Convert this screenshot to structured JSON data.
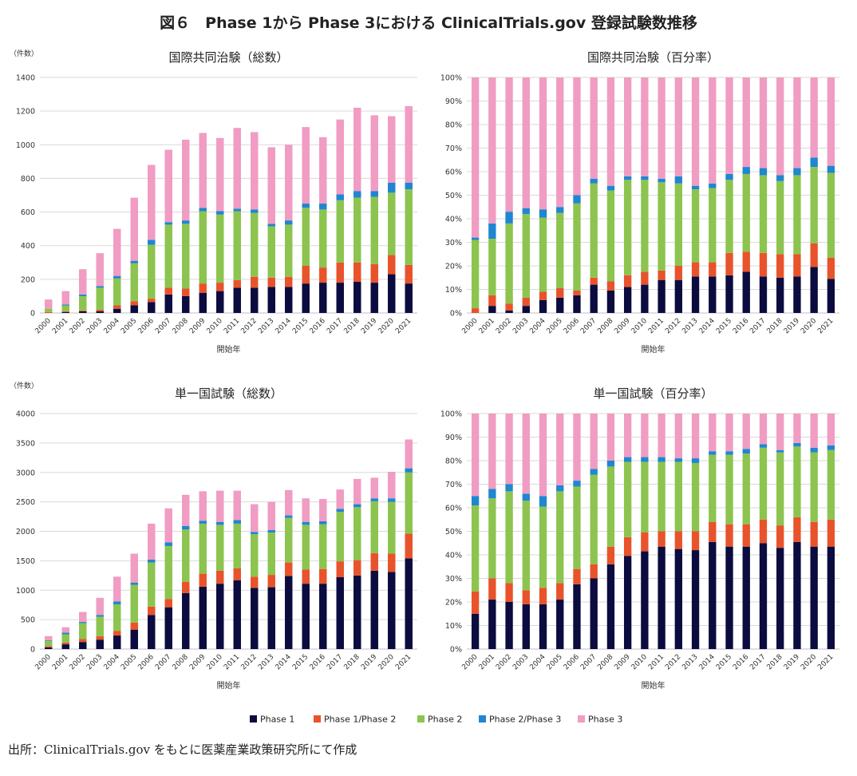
{
  "figure": {
    "title": "図６　Phase 1から Phase 3における ClinicalTrials.gov 登録試験数推移",
    "source": "出所：ClinicalTrials.gov をもとに医薬産業政策研究所にて作成"
  },
  "colors": {
    "Phase 1": "#0b0b3f",
    "Phase 1/Phase 2": "#e8532b",
    "Phase 2": "#8cc44f",
    "Phase 2/Phase 3": "#1f86d1",
    "Phase 3": "#f09cc3"
  },
  "legend": [
    "Phase 1",
    "Phase 1/Phase 2",
    "Phase 2",
    "Phase 2/Phase 3",
    "Phase 3"
  ],
  "chart_data": [
    {
      "type": "bar",
      "stacked": true,
      "title": "国際共同治験（総数）",
      "unit_label": "（件数）",
      "xlabel": "開始年",
      "ylabel": "",
      "ylim": [
        0,
        1400
      ],
      "yticks": [
        0,
        200,
        400,
        600,
        800,
        1000,
        1200,
        1400
      ],
      "percent": false,
      "categories": [
        "2000",
        "2001",
        "2002",
        "2003",
        "2004",
        "2005",
        "2006",
        "2007",
        "2008",
        "2009",
        "2010",
        "2011",
        "2012",
        "2013",
        "2014",
        "2015",
        "2016",
        "2017",
        "2018",
        "2019",
        "2020",
        "2021"
      ],
      "series": [
        {
          "name": "Phase 1",
          "values": [
            0,
            5,
            10,
            10,
            25,
            45,
            65,
            110,
            100,
            120,
            130,
            150,
            150,
            155,
            155,
            175,
            180,
            180,
            185,
            180,
            230,
            175
          ]
        },
        {
          "name": "Phase 1/Phase 2",
          "values": [
            5,
            5,
            5,
            10,
            20,
            25,
            20,
            40,
            45,
            55,
            50,
            45,
            65,
            55,
            60,
            105,
            90,
            120,
            115,
            110,
            115,
            110
          ]
        },
        {
          "name": "Phase 2",
          "values": [
            20,
            35,
            85,
            130,
            160,
            225,
            320,
            375,
            385,
            430,
            405,
            410,
            380,
            305,
            310,
            345,
            345,
            370,
            385,
            400,
            370,
            450
          ]
        },
        {
          "name": "Phase 2/Phase 3",
          "values": [
            0,
            5,
            10,
            10,
            15,
            15,
            30,
            15,
            20,
            20,
            20,
            15,
            20,
            15,
            25,
            25,
            35,
            35,
            40,
            35,
            60,
            40
          ]
        },
        {
          "name": "Phase 3",
          "values": [
            55,
            80,
            150,
            195,
            280,
            375,
            445,
            430,
            480,
            445,
            435,
            480,
            460,
            455,
            450,
            455,
            395,
            445,
            495,
            450,
            395,
            455
          ]
        }
      ]
    },
    {
      "type": "bar",
      "stacked": true,
      "title": "国際共同治験（百分率）",
      "unit_label": "",
      "xlabel": "開始年",
      "ylabel": "",
      "ylim": [
        0,
        100
      ],
      "yticks": [
        0,
        10,
        20,
        30,
        40,
        50,
        60,
        70,
        80,
        90,
        100
      ],
      "percent": true,
      "categories": [
        "2000",
        "2001",
        "2002",
        "2003",
        "2004",
        "2005",
        "2006",
        "2007",
        "2008",
        "2009",
        "2010",
        "2011",
        "2012",
        "2013",
        "2014",
        "2015",
        "2016",
        "2017",
        "2018",
        "2019",
        "2020",
        "2021"
      ],
      "series": [
        {
          "name": "Phase 1",
          "values": [
            0,
            3,
            1,
            3,
            5.5,
            6.5,
            7.5,
            12,
            9.5,
            11,
            12,
            14,
            14,
            15.5,
            15.5,
            16,
            17.5,
            15.5,
            15,
            15.5,
            19.5,
            14.5
          ]
        },
        {
          "name": "Phase 1/Phase 2",
          "values": [
            2,
            4.5,
            3,
            3.5,
            3.5,
            4,
            2,
            3,
            4,
            5,
            5.5,
            4,
            6,
            6,
            6,
            9.5,
            8.5,
            10,
            10,
            9.5,
            10,
            9
          ]
        },
        {
          "name": "Phase 2",
          "values": [
            29,
            24,
            34,
            35.5,
            31.5,
            32,
            37,
            40,
            38.5,
            40.5,
            39,
            37.5,
            35,
            31,
            31.5,
            31,
            33,
            33,
            31,
            33.5,
            32.5,
            36
          ]
        },
        {
          "name": "Phase 2/Phase 3",
          "values": [
            1,
            6.5,
            5,
            2.5,
            3.5,
            2.5,
            3.5,
            2,
            2,
            1.5,
            1.5,
            1.5,
            3,
            1.5,
            2,
            2.5,
            3,
            3,
            2.5,
            3,
            4,
            3
          ]
        },
        {
          "name": "Phase 3",
          "values": [
            68,
            62,
            57,
            55.5,
            56,
            55,
            50,
            43,
            46,
            42,
            42,
            43,
            42,
            46,
            45,
            41,
            38,
            38.5,
            41.5,
            38.5,
            34,
            37.5
          ]
        }
      ]
    },
    {
      "type": "bar",
      "stacked": true,
      "title": "単一国試験（総数）",
      "unit_label": "（件数）",
      "xlabel": "開始年",
      "ylabel": "",
      "ylim": [
        0,
        4000
      ],
      "yticks": [
        0,
        500,
        1000,
        1500,
        2000,
        2500,
        3000,
        3500,
        4000
      ],
      "percent": false,
      "categories": [
        "2000",
        "2001",
        "2002",
        "2003",
        "2004",
        "2005",
        "2006",
        "2007",
        "2008",
        "2009",
        "2010",
        "2011",
        "2012",
        "2013",
        "2014",
        "2015",
        "2016",
        "2017",
        "2018",
        "2019",
        "2020",
        "2021"
      ],
      "series": [
        {
          "name": "Phase 1",
          "values": [
            30,
            80,
            120,
            160,
            230,
            330,
            580,
            710,
            950,
            1060,
            1110,
            1170,
            1040,
            1050,
            1240,
            1110,
            1110,
            1220,
            1250,
            1330,
            1310,
            1540
          ]
        },
        {
          "name": "Phase 1/Phase 2",
          "values": [
            20,
            30,
            50,
            60,
            80,
            120,
            140,
            140,
            190,
            220,
            220,
            200,
            190,
            210,
            230,
            240,
            250,
            270,
            260,
            300,
            310,
            420
          ]
        },
        {
          "name": "Phase 2",
          "values": [
            90,
            140,
            270,
            330,
            450,
            640,
            750,
            900,
            890,
            850,
            780,
            760,
            720,
            720,
            760,
            760,
            760,
            840,
            900,
            880,
            880,
            1040
          ]
        },
        {
          "name": "Phase 2/Phase 3",
          "values": [
            10,
            30,
            20,
            30,
            50,
            40,
            50,
            60,
            60,
            50,
            50,
            60,
            40,
            40,
            40,
            50,
            50,
            50,
            50,
            50,
            60,
            70
          ]
        },
        {
          "name": "Phase 3",
          "values": [
            70,
            90,
            170,
            290,
            420,
            490,
            610,
            580,
            530,
            500,
            530,
            500,
            470,
            480,
            430,
            400,
            380,
            330,
            430,
            350,
            450,
            490
          ]
        }
      ]
    },
    {
      "type": "bar",
      "stacked": true,
      "title": "単一国試験（百分率）",
      "unit_label": "",
      "xlabel": "開始年",
      "ylabel": "",
      "ylim": [
        0,
        100
      ],
      "yticks": [
        0,
        10,
        20,
        30,
        40,
        50,
        60,
        70,
        80,
        90,
        100
      ],
      "percent": true,
      "categories": [
        "2000",
        "2001",
        "2002",
        "2003",
        "2004",
        "2005",
        "2006",
        "2007",
        "2008",
        "2009",
        "2010",
        "2011",
        "2012",
        "2013",
        "2014",
        "2015",
        "2016",
        "2017",
        "2018",
        "2019",
        "2020",
        "2021"
      ],
      "series": [
        {
          "name": "Phase 1",
          "values": [
            15,
            21,
            20,
            19,
            19,
            21,
            27.5,
            30,
            36,
            39.5,
            41.5,
            43.5,
            42.5,
            42,
            45.5,
            43.5,
            43.5,
            45,
            43,
            45.5,
            43.5,
            43.5
          ]
        },
        {
          "name": "Phase 1/Phase 2",
          "values": [
            9.5,
            9,
            8,
            6,
            7,
            7,
            6.5,
            6,
            7.5,
            8,
            8,
            6.5,
            7.5,
            8,
            8.5,
            9.5,
            9.5,
            10,
            9.5,
            10.5,
            10.5,
            11.5
          ]
        },
        {
          "name": "Phase 2",
          "values": [
            36.5,
            34,
            39,
            38,
            34.5,
            39,
            35,
            38,
            34,
            32,
            30,
            29.5,
            29.5,
            29,
            28.5,
            29.5,
            30,
            30.5,
            31,
            30,
            29.5,
            29.5
          ]
        },
        {
          "name": "Phase 2/Phase 3",
          "values": [
            4,
            4,
            3,
            3,
            4.5,
            2.5,
            2.5,
            2.5,
            2.5,
            2,
            2,
            2,
            1.5,
            2,
            1.5,
            1.5,
            2,
            1.5,
            1,
            1.5,
            2,
            2
          ]
        },
        {
          "name": "Phase 3",
          "values": [
            35,
            32,
            30,
            34,
            35,
            30.5,
            28.5,
            23.5,
            20,
            18.5,
            18.5,
            18.5,
            19,
            19,
            16,
            16,
            15,
            13,
            15.5,
            12.5,
            14.5,
            13.5
          ]
        }
      ]
    }
  ]
}
